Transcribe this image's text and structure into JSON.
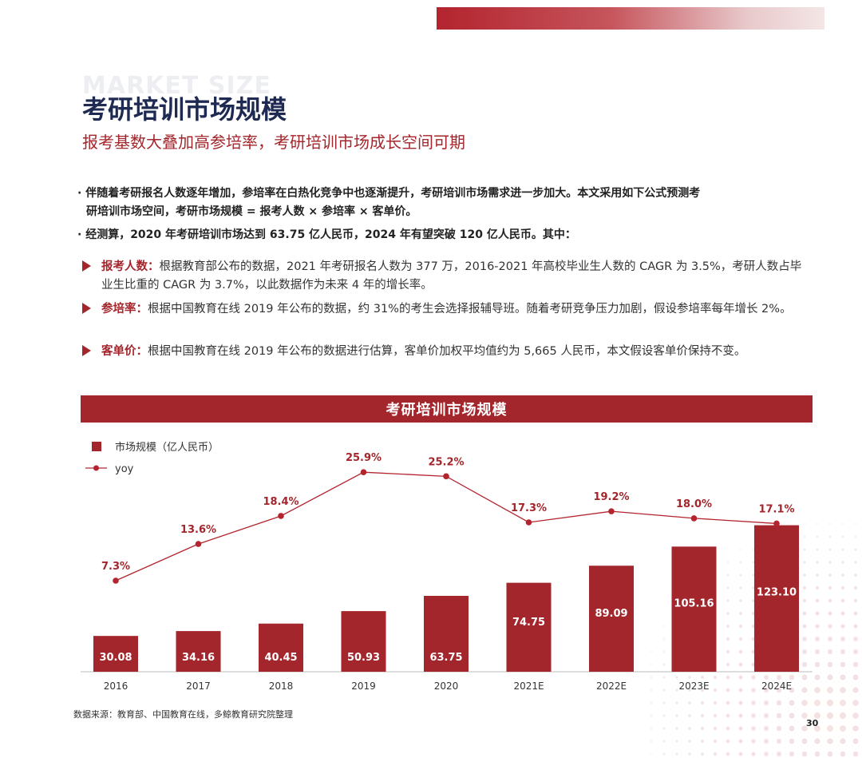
{
  "watermark": "MARKET SIZE",
  "title": "考研培训市场规模",
  "subtitle": "报考基数大叠加高参培率，考研培训市场成长空间可期",
  "bullets": [
    {
      "line1": "· 伴随着考研报名人数逐年增加，参培率在白热化竞争中也逐渐提升，考研培训市场需求进一步加大。本文采用如下公式预测考",
      "line2": "研培训市场空间，考研市场规模 = 报考人数 × 参培率 × 客单价。"
    },
    {
      "line1": "· 经测算，2020 年考研培训市场达到 63.75 亿人民币，2024 年有望突破 120 亿人民币。其中："
    }
  ],
  "items": [
    {
      "key": "报考人数：",
      "text": "根据教育部公布的数据，2021 年考研报名人数为 377 万，2016-2021 年高校毕业生人数的 CAGR 为 3.5%，考研人数占毕业生比重的 CAGR 为 3.7%，以此数据作为未来 4 年的增长率。"
    },
    {
      "key": "参培率：",
      "text": "根据中国教育在线 2019 年公布的数据，约 31%的考生会选择报辅导班。随着考研竞争压力加剧，假设参培率每年增长 2%。"
    },
    {
      "key": "客单价：",
      "text": "根据中国教育在线 2019 年公布的数据进行估算，客单价加权平均值约为 5,665 人民币，本文假设客单价保持不变。"
    }
  ],
  "chart_data": {
    "type": "bar",
    "title": "考研培训市场规模",
    "categories": [
      "2016",
      "2017",
      "2018",
      "2019",
      "2020",
      "2021E",
      "2022E",
      "2023E",
      "2024E"
    ],
    "series": [
      {
        "name": "市场规模（亿人民币）",
        "type": "bar",
        "values": [
          30.08,
          34.16,
          40.45,
          50.93,
          63.75,
          74.75,
          89.09,
          105.16,
          123.1
        ],
        "labels": [
          "30.08",
          "34.16",
          "40.45",
          "50.93",
          "63.75",
          "74.75",
          "89.09",
          "105.16",
          "123.10"
        ]
      },
      {
        "name": "yoy",
        "type": "line",
        "values": [
          7.3,
          13.6,
          18.4,
          25.9,
          25.2,
          17.3,
          19.2,
          18.0,
          17.1
        ],
        "labels": [
          "7.3%",
          "13.6%",
          "18.4%",
          "25.9%",
          "25.2%",
          "17.3%",
          "19.2%",
          "18.0%",
          "17.1%"
        ]
      }
    ],
    "legend_position": "top-left",
    "colors": {
      "bar": "#a3262c",
      "line": "#b3242e"
    }
  },
  "source": "数据来源：教育部、中国教育在线，多鲸教育研究院整理",
  "page_number": "30"
}
